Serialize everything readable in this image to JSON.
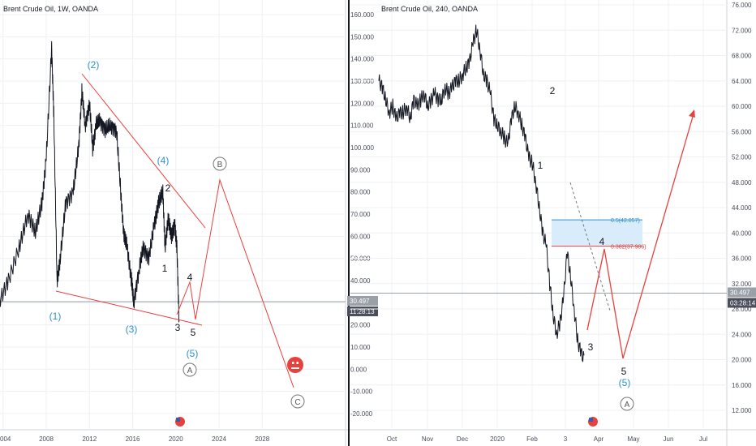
{
  "chart_data": [
    {
      "type": "line",
      "title": "Brent Crude Oil, 1W, OANDA",
      "xlabel": "",
      "ylabel": "",
      "x_ticks": [
        "004",
        "2008",
        "2012",
        "2016",
        "2020",
        "2024",
        "2028"
      ],
      "y_ticks": [
        "160.000",
        "150.000",
        "140.000",
        "130.000",
        "120.000",
        "110.000",
        "100.000",
        "90.000",
        "80.000",
        "70.000",
        "60.000",
        "50.000",
        "40.000",
        "30.000",
        "20.000",
        "10.000",
        "0.000",
        "-10.000",
        "-20.000"
      ],
      "ylim": [
        -20,
        160
      ],
      "last_price": "30.497",
      "countdown": "11:28:13",
      "series": [
        {
          "x": [
            2003.6,
            2004.5,
            2005.5,
            2006.3,
            2007.0,
            2007.6,
            2008.0,
            2008.5,
            2008.7,
            2009.0,
            2009.3,
            2009.8,
            2010.5,
            2011.0,
            2011.3,
            2011.6,
            2012.0,
            2012.3,
            2012.6,
            2013.0,
            2013.5,
            2014.0,
            2014.5,
            2014.9,
            2015.2,
            2015.5,
            2015.9,
            2016.1,
            2016.6,
            2017.0,
            2017.5,
            2018.0,
            2018.4,
            2018.8,
            2019.0,
            2019.3,
            2019.6,
            2019.9,
            2020.1,
            2020.3
          ],
          "values": [
            30,
            40,
            55,
            70,
            62,
            75,
            95,
            145,
            115,
            40,
            50,
            75,
            80,
            100,
            125,
            110,
            120,
            100,
            110,
            112,
            108,
            110,
            108,
            80,
            60,
            55,
            40,
            30,
            45,
            55,
            50,
            65,
            75,
            80,
            55,
            68,
            60,
            65,
            55,
            22
          ]
        }
      ],
      "annotations": [
        {
          "label": "(1)",
          "color": "#2f8fcf"
        },
        {
          "label": "(2)",
          "color": "#2f8fcf"
        },
        {
          "label": "(3)",
          "color": "#2f8fcf"
        },
        {
          "label": "(4)",
          "color": "#2f8fcf"
        },
        {
          "label": "(5)",
          "color": "#2f8fcf"
        },
        {
          "label": "1",
          "color": "#131722"
        },
        {
          "label": "2",
          "color": "#131722"
        },
        {
          "label": "3",
          "color": "#131722"
        },
        {
          "label": "4",
          "color": "#131722"
        },
        {
          "label": "5",
          "color": "#131722"
        },
        {
          "label": "A",
          "color": "#555555"
        },
        {
          "label": "B",
          "color": "#555555"
        },
        {
          "label": "C",
          "color": "#555555"
        }
      ],
      "colors": {
        "price": "#131722",
        "trendline": "#e8403c",
        "projection": "#e8403c",
        "wave_blue": "#2f8fcf"
      }
    },
    {
      "type": "line",
      "title": "Brent Crude Oil, 240, OANDA",
      "xlabel": "",
      "ylabel": "",
      "x_ticks": [
        "Oct",
        "Nov",
        "Dec",
        "2020",
        "Feb",
        "3",
        "Apr",
        "May",
        "Jun",
        "Jul"
      ],
      "y_ticks": [
        "76.000",
        "72.000",
        "68.000",
        "64.000",
        "60.000",
        "56.000",
        "52.000",
        "48.000",
        "44.000",
        "40.000",
        "36.000",
        "32.000",
        "28.000",
        "24.000",
        "20.000",
        "16.000",
        "12.000"
      ],
      "ylim": [
        12,
        76
      ],
      "last_price": "30.497",
      "countdown": "03:28:14",
      "fib_levels": [
        {
          "label": "0.5(42.057)",
          "value": 42.057,
          "color": "#2f8fcf"
        },
        {
          "label": "0.382(37.906)",
          "value": 37.906,
          "color": "#e8403c"
        }
      ],
      "series": [
        {
          "x": [
            0,
            1,
            2,
            3,
            4,
            5,
            6,
            7,
            8,
            9,
            10,
            11,
            12,
            13,
            14,
            15,
            16,
            17,
            18,
            19,
            20,
            21,
            22,
            23,
            24,
            25,
            26,
            27,
            28,
            29,
            30,
            31,
            32,
            33,
            34,
            35,
            36,
            37,
            38,
            39,
            40,
            41,
            42,
            43,
            44,
            45,
            46,
            47,
            48,
            49,
            50,
            51,
            52,
            53,
            54,
            55,
            56,
            57,
            58,
            59,
            60,
            61,
            62,
            63,
            64,
            65,
            66,
            67,
            68,
            69,
            70,
            71,
            72,
            73,
            74,
            75,
            76
          ],
          "values": [
            64,
            63,
            61,
            59,
            60,
            58,
            59,
            59,
            60,
            58,
            61,
            60,
            61,
            62,
            60,
            61,
            62,
            61,
            61,
            63,
            62,
            63,
            64,
            64,
            65,
            66,
            67,
            70,
            72,
            69,
            65,
            64,
            62,
            58,
            57,
            56,
            55,
            54,
            58,
            60,
            59,
            57,
            55,
            52,
            51,
            48,
            44,
            40,
            38,
            32,
            27,
            24,
            26,
            30,
            37,
            33,
            28,
            23,
            21,
            20,
            24,
            28,
            32,
            36,
            40,
            44,
            48,
            52,
            56,
            59,
            60,
            59,
            59,
            60,
            59,
            58,
            60
          ]
        }
      ],
      "annotations": [
        {
          "label": "1",
          "color": "#131722"
        },
        {
          "label": "2",
          "color": "#131722"
        },
        {
          "label": "3",
          "color": "#131722"
        },
        {
          "label": "4",
          "color": "#131722"
        },
        {
          "label": "5",
          "color": "#131722"
        },
        {
          "label": "(5)",
          "color": "#2f8fcf"
        },
        {
          "label": "A",
          "color": "#555555"
        }
      ],
      "colors": {
        "price": "#131722",
        "projection": "#e8403c",
        "fib_zone": "#bfe0f7"
      }
    }
  ]
}
